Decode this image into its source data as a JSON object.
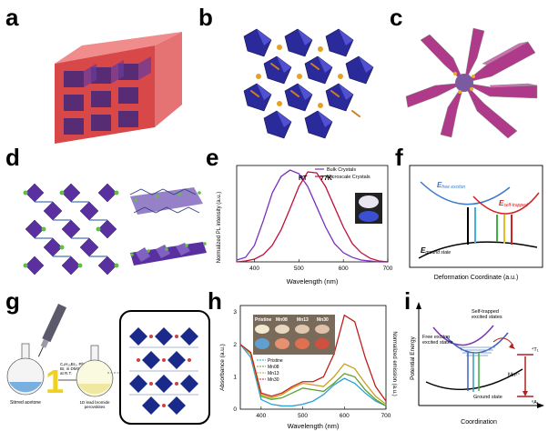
{
  "panels": {
    "a": {
      "label": "a"
    },
    "b": {
      "label": "b"
    },
    "c": {
      "label": "c"
    },
    "d": {
      "label": "d"
    },
    "e": {
      "label": "e"
    },
    "f": {
      "label": "f"
    },
    "g": {
      "label": "g"
    },
    "h": {
      "label": "h"
    },
    "i": {
      "label": "i"
    }
  },
  "panel_e": {
    "ylabel": "Normalized PL intensity (a.u.)",
    "xlabel": "Wavelength (nm)",
    "xticks": [
      "400",
      "500",
      "600",
      "700"
    ],
    "legend": [
      "Bulk Crystals",
      "Microscale Crystals"
    ],
    "annotations": [
      "RT",
      "77K"
    ],
    "colors": {
      "bulk": "#7b2fbf",
      "micro": "#c0103c",
      "dashed": "#c0103c"
    }
  },
  "panel_f": {
    "xlabel": "Deformation Coordinate (a.u.)",
    "free_exciton": "E",
    "free_exciton_sub": "free exciton",
    "self_trapped": "E",
    "self_trapped_sub": "self-trapped",
    "ground": "E",
    "ground_sub": "ground state"
  },
  "panel_g": {
    "reagents": "C₄H₁₀Br₂, PbBr₂,\nBr, in DMSO\nat R.T.",
    "step1": "1",
    "flask1_label": "Stirred acetone",
    "flask2_label": "1D lead bromide\nperovskites"
  },
  "panel_h": {
    "ylabel": "Absorbance (a.u.)",
    "ylabel_right": "Normalized emission (a.u.)",
    "xlabel": "Wavelength (nm)",
    "xticks": [
      "400",
      "500",
      "600",
      "700"
    ],
    "yticks": [
      "0",
      "1",
      "2",
      "3"
    ],
    "photo_labels": [
      "Pristine",
      "Mn08",
      "Mn13",
      "Mn30"
    ],
    "legend": [
      "Pristine",
      "Mn08",
      "Mn13",
      "Mn30"
    ],
    "colors": {
      "pristine": "#2aa0d8",
      "mn08": "#5aa02c",
      "mn13": "#c8a020",
      "mn30": "#c0201c"
    }
  },
  "panel_i": {
    "ylabel": "Potential Energy",
    "xlabel": "Coordination",
    "free_exciton": "Free exciton\nexcited states",
    "self_trapped": "Self-trapped\nexcited states",
    "ground": "Ground state",
    "mn": "Mn²⁺",
    "t1": "⁴T₁",
    "a1": "⁶A₁"
  },
  "chart_data": [
    {
      "type": "line",
      "title": "",
      "xlabel": "Wavelength (nm)",
      "ylabel": "Normalized PL intensity (a.u.)",
      "xlim": [
        360,
        700
      ],
      "ylim": [
        0,
        1.05
      ],
      "series": [
        {
          "name": "Bulk Crystals",
          "x": [
            360,
            380,
            400,
            420,
            440,
            460,
            480,
            500,
            520,
            540,
            560,
            580,
            600,
            620,
            640,
            660,
            680,
            700
          ],
          "values": [
            0.02,
            0.05,
            0.18,
            0.45,
            0.75,
            0.93,
            1.0,
            0.96,
            0.82,
            0.6,
            0.38,
            0.2,
            0.1,
            0.05,
            0.02,
            0.01,
            0.0,
            0.0
          ]
        },
        {
          "name": "Microscale Crystals",
          "x": [
            360,
            380,
            400,
            420,
            440,
            460,
            480,
            500,
            520,
            540,
            560,
            580,
            600,
            620,
            640,
            660,
            680,
            700
          ],
          "values": [
            0.0,
            0.01,
            0.03,
            0.08,
            0.18,
            0.35,
            0.58,
            0.82,
            0.98,
            0.97,
            0.82,
            0.6,
            0.38,
            0.2,
            0.1,
            0.04,
            0.01,
            0.0
          ]
        }
      ]
    },
    {
      "type": "line",
      "title": "",
      "xlabel": "Wavelength (nm)",
      "ylabel": "Absorbance (a.u.)",
      "xlim": [
        350,
        700
      ],
      "ylim": [
        0,
        3.2
      ],
      "series": [
        {
          "name": "Pristine",
          "x": [
            350,
            375,
            400,
            425,
            450,
            475,
            500,
            525,
            550,
            575,
            600,
            625,
            650,
            675,
            700
          ],
          "values": [
            2.0,
            1.6,
            0.3,
            0.15,
            0.1,
            0.1,
            0.15,
            0.25,
            0.45,
            0.75,
            0.95,
            0.8,
            0.5,
            0.25,
            0.1
          ]
        },
        {
          "name": "Mn08",
          "x": [
            350,
            375,
            400,
            425,
            450,
            475,
            500,
            525,
            550,
            575,
            600,
            625,
            650,
            675,
            700
          ],
          "values": [
            2.0,
            1.7,
            0.4,
            0.3,
            0.35,
            0.5,
            0.65,
            0.6,
            0.55,
            0.8,
            1.1,
            1.0,
            0.6,
            0.3,
            0.1
          ]
        },
        {
          "name": "Mn13",
          "x": [
            350,
            375,
            400,
            425,
            450,
            475,
            500,
            525,
            550,
            575,
            600,
            625,
            650,
            675,
            700
          ],
          "values": [
            2.0,
            1.7,
            0.45,
            0.35,
            0.45,
            0.65,
            0.8,
            0.75,
            0.7,
            1.0,
            1.4,
            1.25,
            0.8,
            0.4,
            0.15
          ]
        },
        {
          "name": "Mn30",
          "x": [
            350,
            375,
            400,
            425,
            450,
            475,
            500,
            525,
            550,
            575,
            600,
            625,
            650,
            675,
            700
          ],
          "values": [
            2.0,
            1.75,
            0.5,
            0.4,
            0.5,
            0.7,
            0.85,
            0.85,
            1.0,
            1.7,
            2.9,
            2.7,
            1.6,
            0.7,
            0.25
          ]
        }
      ]
    }
  ]
}
